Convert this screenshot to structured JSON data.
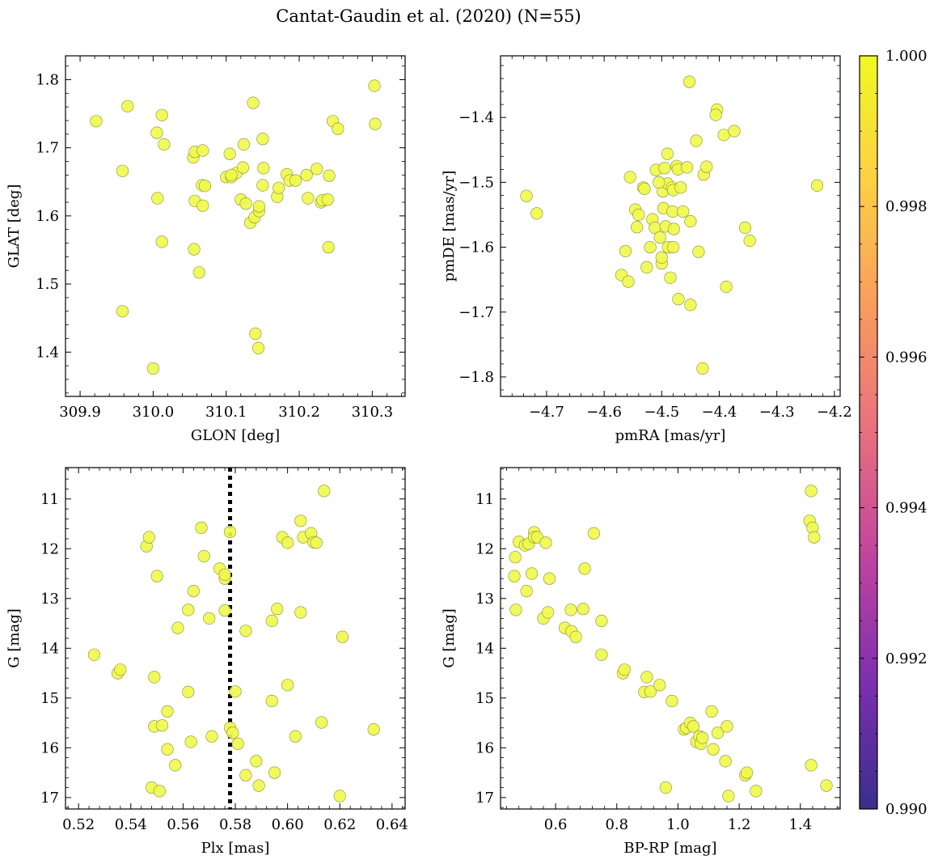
{
  "figure": {
    "title": "Cantat-Gaudin et al. (2020) (N=55)"
  },
  "style": {
    "point_color": "#f0f94a",
    "point_edge": "#8c8c3c",
    "marker_line_color": "#000000",
    "colormap": [
      "#3a2e8c",
      "#7c2fb0",
      "#c0439f",
      "#e7707f",
      "#f99b5e",
      "#fdd045",
      "#f0f921"
    ]
  },
  "chart_data": [
    {
      "id": "glon-glat",
      "type": "scatter",
      "xlabel": "GLON [deg]",
      "ylabel": "GLAT [deg]",
      "xlim": [
        309.88,
        310.345
      ],
      "ylim": [
        1.335,
        1.835
      ],
      "xticks": [
        309.9,
        310.0,
        310.1,
        310.2,
        310.3
      ],
      "xtick_labels": [
        "309.9",
        "310.0",
        "310.1",
        "310.2",
        "310.3"
      ],
      "yticks": [
        1.4,
        1.5,
        1.6,
        1.7,
        1.8
      ],
      "ytick_labels": [
        "1.4",
        "1.5",
        "1.6",
        "1.7",
        "1.8"
      ],
      "points": [
        [
          309.922,
          1.739
        ],
        [
          309.965,
          1.761
        ],
        [
          309.958,
          1.666
        ],
        [
          309.958,
          1.46
        ],
        [
          310.0,
          1.376
        ],
        [
          310.005,
          1.722
        ],
        [
          310.006,
          1.626
        ],
        [
          310.012,
          1.748
        ],
        [
          310.015,
          1.705
        ],
        [
          310.012,
          1.562
        ],
        [
          310.055,
          1.686
        ],
        [
          310.057,
          1.694
        ],
        [
          310.057,
          1.622
        ],
        [
          310.056,
          1.551
        ],
        [
          310.063,
          1.517
        ],
        [
          310.068,
          1.696
        ],
        [
          310.067,
          1.645
        ],
        [
          310.071,
          1.644
        ],
        [
          310.068,
          1.615
        ],
        [
          310.1,
          1.657
        ],
        [
          310.105,
          1.691
        ],
        [
          310.107,
          1.657
        ],
        [
          310.114,
          1.663
        ],
        [
          310.12,
          1.624
        ],
        [
          310.123,
          1.671
        ],
        [
          310.124,
          1.705
        ],
        [
          310.127,
          1.618
        ],
        [
          310.133,
          1.59
        ],
        [
          310.137,
          1.766
        ],
        [
          310.139,
          1.598
        ],
        [
          310.14,
          1.427
        ],
        [
          310.145,
          1.607
        ],
        [
          310.145,
          1.614
        ],
        [
          310.144,
          1.406
        ],
        [
          310.15,
          1.713
        ],
        [
          310.151,
          1.67
        ],
        [
          310.15,
          1.645
        ],
        [
          310.17,
          1.628
        ],
        [
          310.172,
          1.641
        ],
        [
          310.183,
          1.661
        ],
        [
          310.187,
          1.652
        ],
        [
          310.195,
          1.652
        ],
        [
          310.21,
          1.66
        ],
        [
          310.212,
          1.626
        ],
        [
          310.224,
          1.669
        ],
        [
          310.23,
          1.62
        ],
        [
          310.232,
          1.623
        ],
        [
          310.239,
          1.624
        ],
        [
          310.241,
          1.659
        ],
        [
          310.24,
          1.554
        ],
        [
          310.246,
          1.739
        ],
        [
          310.253,
          1.728
        ],
        [
          310.303,
          1.791
        ],
        [
          310.304,
          1.735
        ],
        [
          310.107,
          1.66
        ]
      ]
    },
    {
      "id": "pmra-pmde",
      "type": "scatter",
      "xlabel": "pmRA [mas/yr]",
      "ylabel": "pmDE [mas/yr]",
      "xlim": [
        -4.78,
        -4.19
      ],
      "ylim": [
        -1.83,
        -1.305
      ],
      "xticks": [
        -4.7,
        -4.6,
        -4.5,
        -4.4,
        -4.3,
        -4.2
      ],
      "xtick_labels": [
        "−4.7",
        "−4.6",
        "−4.5",
        "−4.4",
        "−4.3",
        "−4.2"
      ],
      "yticks": [
        -1.8,
        -1.7,
        -1.6,
        -1.5,
        -1.4
      ],
      "ytick_labels": [
        "−1.8",
        "−1.7",
        "−1.6",
        "−1.5",
        "−1.4"
      ],
      "points": [
        [
          -4.735,
          -1.521
        ],
        [
          -4.717,
          -1.548
        ],
        [
          -4.57,
          -1.643
        ],
        [
          -4.563,
          -1.606
        ],
        [
          -4.558,
          -1.653
        ],
        [
          -4.555,
          -1.492
        ],
        [
          -4.546,
          -1.542
        ],
        [
          -4.543,
          -1.569
        ],
        [
          -4.54,
          -1.55
        ],
        [
          -4.532,
          -1.508
        ],
        [
          -4.53,
          -1.51
        ],
        [
          -4.526,
          -1.631
        ],
        [
          -4.516,
          -1.557
        ],
        [
          -4.512,
          -1.57
        ],
        [
          -4.51,
          -1.481
        ],
        [
          -4.503,
          -1.585
        ],
        [
          -4.5,
          -1.625
        ],
        [
          -4.5,
          -1.616
        ],
        [
          -4.498,
          -1.514
        ],
        [
          -4.497,
          -1.54
        ],
        [
          -4.495,
          -1.478
        ],
        [
          -4.493,
          -1.568
        ],
        [
          -4.49,
          -1.456
        ],
        [
          -4.49,
          -1.502
        ],
        [
          -4.489,
          -1.6
        ],
        [
          -4.485,
          -1.647
        ],
        [
          -4.482,
          -1.508
        ],
        [
          -4.481,
          -1.545
        ],
        [
          -4.48,
          -1.512
        ],
        [
          -4.479,
          -1.572
        ],
        [
          -4.474,
          -1.475
        ],
        [
          -4.472,
          -1.48
        ],
        [
          -4.471,
          -1.68
        ],
        [
          -4.467,
          -1.508
        ],
        [
          -4.463,
          -1.545
        ],
        [
          -4.456,
          -1.477
        ],
        [
          -4.452,
          -1.345
        ],
        [
          -4.45,
          -1.689
        ],
        [
          -4.44,
          -1.436
        ],
        [
          -4.436,
          -1.607
        ],
        [
          -4.429,
          -1.787
        ],
        [
          -4.427,
          -1.488
        ],
        [
          -4.422,
          -1.476
        ],
        [
          -4.388,
          -1.661
        ],
        [
          -4.392,
          -1.427
        ],
        [
          -4.404,
          -1.388
        ],
        [
          -4.406,
          -1.396
        ],
        [
          -4.374,
          -1.421
        ],
        [
          -4.355,
          -1.57
        ],
        [
          -4.347,
          -1.59
        ],
        [
          -4.23,
          -1.505
        ],
        [
          -4.52,
          -1.6
        ],
        [
          -4.505,
          -1.5
        ],
        [
          -4.45,
          -1.56
        ],
        [
          -4.48,
          -1.6
        ]
      ]
    },
    {
      "id": "plx-g",
      "type": "scatter",
      "xlabel": "Plx [mas]",
      "ylabel": "G [mag]",
      "xlim": [
        0.515,
        0.645
      ],
      "ylim": [
        17.23,
        10.37
      ],
      "y_inverted": true,
      "xticks": [
        0.52,
        0.54,
        0.56,
        0.58,
        0.6,
        0.62,
        0.64
      ],
      "xtick_labels": [
        "0.52",
        "0.54",
        "0.56",
        "0.58",
        "0.60",
        "0.62",
        "0.64"
      ],
      "yticks": [
        11,
        12,
        13,
        14,
        15,
        16,
        17
      ],
      "ytick_labels": [
        "11",
        "12",
        "13",
        "14",
        "15",
        "16",
        "17"
      ],
      "vline": {
        "x": 0.578,
        "style": "dotted"
      },
      "points": [
        [
          0.526,
          14.13
        ],
        [
          0.535,
          14.5
        ],
        [
          0.536,
          14.43
        ],
        [
          0.546,
          11.95
        ],
        [
          0.547,
          11.77
        ],
        [
          0.548,
          16.8
        ],
        [
          0.549,
          15.57
        ],
        [
          0.549,
          14.58
        ],
        [
          0.55,
          12.55
        ],
        [
          0.551,
          16.87
        ],
        [
          0.552,
          15.55
        ],
        [
          0.554,
          15.27
        ],
        [
          0.554,
          16.03
        ],
        [
          0.557,
          16.35
        ],
        [
          0.558,
          13.59
        ],
        [
          0.562,
          13.23
        ],
        [
          0.562,
          14.88
        ],
        [
          0.563,
          15.88
        ],
        [
          0.564,
          12.85
        ],
        [
          0.567,
          11.58
        ],
        [
          0.568,
          12.15
        ],
        [
          0.57,
          13.4
        ],
        [
          0.571,
          15.77
        ],
        [
          0.574,
          12.4
        ],
        [
          0.576,
          12.6
        ],
        [
          0.576,
          13.24
        ],
        [
          0.576,
          12.52
        ],
        [
          0.578,
          11.66
        ],
        [
          0.578,
          15.6
        ],
        [
          0.579,
          15.7
        ],
        [
          0.58,
          14.87
        ],
        [
          0.581,
          15.92
        ],
        [
          0.584,
          13.65
        ],
        [
          0.584,
          16.55
        ],
        [
          0.588,
          16.27
        ],
        [
          0.589,
          16.76
        ],
        [
          0.594,
          13.45
        ],
        [
          0.594,
          15.06
        ],
        [
          0.595,
          16.5
        ],
        [
          0.596,
          13.21
        ],
        [
          0.598,
          11.77
        ],
        [
          0.6,
          14.74
        ],
        [
          0.6,
          11.88
        ],
        [
          0.603,
          15.77
        ],
        [
          0.605,
          13.28
        ],
        [
          0.605,
          11.44
        ],
        [
          0.606,
          11.77
        ],
        [
          0.609,
          11.69
        ],
        [
          0.61,
          11.87
        ],
        [
          0.611,
          11.88
        ],
        [
          0.613,
          15.49
        ],
        [
          0.614,
          10.84
        ],
        [
          0.62,
          16.97
        ],
        [
          0.621,
          13.77
        ],
        [
          0.633,
          15.63
        ]
      ]
    },
    {
      "id": "bprp-g",
      "type": "scatter",
      "xlabel": "BP-RP [mag]",
      "ylabel": "G [mag]",
      "xlim": [
        0.42,
        1.53
      ],
      "ylim": [
        17.23,
        10.37
      ],
      "y_inverted": true,
      "xticks": [
        0.6,
        0.8,
        1.0,
        1.2,
        1.4
      ],
      "xtick_labels": [
        "0.6",
        "0.8",
        "1.0",
        "1.2",
        "1.4"
      ],
      "yticks": [
        11,
        12,
        13,
        14,
        15,
        16,
        17
      ],
      "ytick_labels": [
        "11",
        "12",
        "13",
        "14",
        "15",
        "16",
        "17"
      ],
      "points": [
        [
          0.468,
          12.17
        ],
        [
          0.465,
          12.55
        ],
        [
          0.47,
          13.23
        ],
        [
          0.48,
          11.86
        ],
        [
          0.5,
          11.93
        ],
        [
          0.505,
          12.85
        ],
        [
          0.512,
          11.9
        ],
        [
          0.522,
          12.5
        ],
        [
          0.53,
          11.67
        ],
        [
          0.53,
          11.77
        ],
        [
          0.54,
          11.77
        ],
        [
          0.56,
          13.4
        ],
        [
          0.568,
          11.88
        ],
        [
          0.575,
          13.28
        ],
        [
          0.58,
          12.6
        ],
        [
          0.63,
          13.59
        ],
        [
          0.65,
          13.23
        ],
        [
          0.652,
          13.66
        ],
        [
          0.666,
          13.77
        ],
        [
          0.69,
          13.21
        ],
        [
          0.695,
          12.4
        ],
        [
          0.725,
          11.69
        ],
        [
          0.75,
          13.45
        ],
        [
          0.75,
          14.13
        ],
        [
          0.82,
          14.5
        ],
        [
          0.825,
          14.43
        ],
        [
          0.89,
          14.88
        ],
        [
          0.898,
          14.58
        ],
        [
          0.91,
          14.87
        ],
        [
          0.94,
          14.74
        ],
        [
          0.96,
          16.8
        ],
        [
          0.98,
          15.06
        ],
        [
          1.02,
          15.63
        ],
        [
          1.027,
          15.6
        ],
        [
          1.04,
          15.5
        ],
        [
          1.05,
          15.57
        ],
        [
          1.06,
          15.88
        ],
        [
          1.07,
          15.77
        ],
        [
          1.075,
          15.92
        ],
        [
          1.08,
          15.8
        ],
        [
          1.11,
          15.27
        ],
        [
          1.115,
          16.03
        ],
        [
          1.13,
          15.7
        ],
        [
          1.155,
          16.27
        ],
        [
          1.16,
          15.57
        ],
        [
          1.165,
          16.97
        ],
        [
          1.22,
          16.55
        ],
        [
          1.225,
          16.5
        ],
        [
          1.255,
          16.87
        ],
        [
          1.43,
          11.44
        ],
        [
          1.435,
          16.35
        ],
        [
          1.435,
          10.84
        ],
        [
          1.44,
          11.58
        ],
        [
          1.445,
          11.77
        ],
        [
          1.485,
          16.76
        ]
      ]
    },
    {
      "id": "colorbar",
      "type": "heatmap",
      "range": [
        0.99,
        1.0
      ],
      "ticks": [
        0.99,
        0.992,
        0.994,
        0.996,
        0.998,
        1.0
      ],
      "tick_labels": [
        "0.990",
        "0.992",
        "0.994",
        "0.996",
        "0.998",
        "1.000"
      ]
    }
  ]
}
